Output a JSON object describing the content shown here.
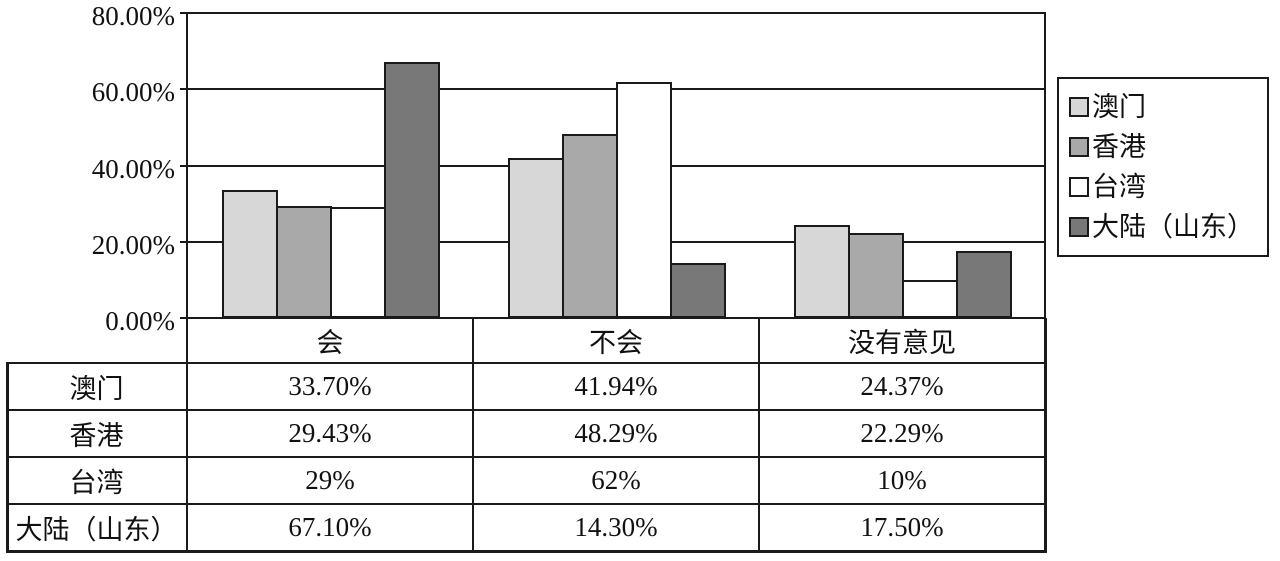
{
  "chart_data": {
    "type": "bar",
    "title": "",
    "xlabel": "",
    "ylabel": "",
    "categories": [
      "会",
      "不会",
      "没有意见"
    ],
    "category_ids": [
      "will",
      "wont",
      "no-opinion"
    ],
    "series": [
      {
        "id": "macau",
        "name": "澳门",
        "values": [
          33.7,
          41.94,
          24.37
        ],
        "labels": [
          "33.70%",
          "41.94%",
          "24.37%"
        ],
        "color": "#d7d7d7"
      },
      {
        "id": "hongkong",
        "name": "香港",
        "values": [
          29.43,
          48.29,
          22.29
        ],
        "labels": [
          "29.43%",
          "48.29%",
          "22.29%"
        ],
        "color": "#a9a9a9"
      },
      {
        "id": "taiwan",
        "name": "台湾",
        "values": [
          29,
          62,
          10
        ],
        "labels": [
          "29%",
          "62%",
          "10%"
        ],
        "color": "#ffffff"
      },
      {
        "id": "mainland-shandong",
        "name": "大陆（山东）",
        "values": [
          67.1,
          14.3,
          17.5
        ],
        "labels": [
          "67.10%",
          "14.30%",
          "17.50%"
        ],
        "color": "#787878"
      }
    ],
    "ylim": [
      0,
      80
    ],
    "ytick_labels": [
      "0.00%",
      "20.00%",
      "40.00%",
      "60.00%",
      "80.00%"
    ],
    "grid": true,
    "legend_position": "right"
  },
  "colors": {
    "line": "#1a1a1a",
    "background": "#ffffff",
    "series_macau": "#d7d7d7",
    "series_hongkong": "#a9a9a9",
    "series_taiwan": "#ffffff",
    "series_mainland": "#787878"
  }
}
